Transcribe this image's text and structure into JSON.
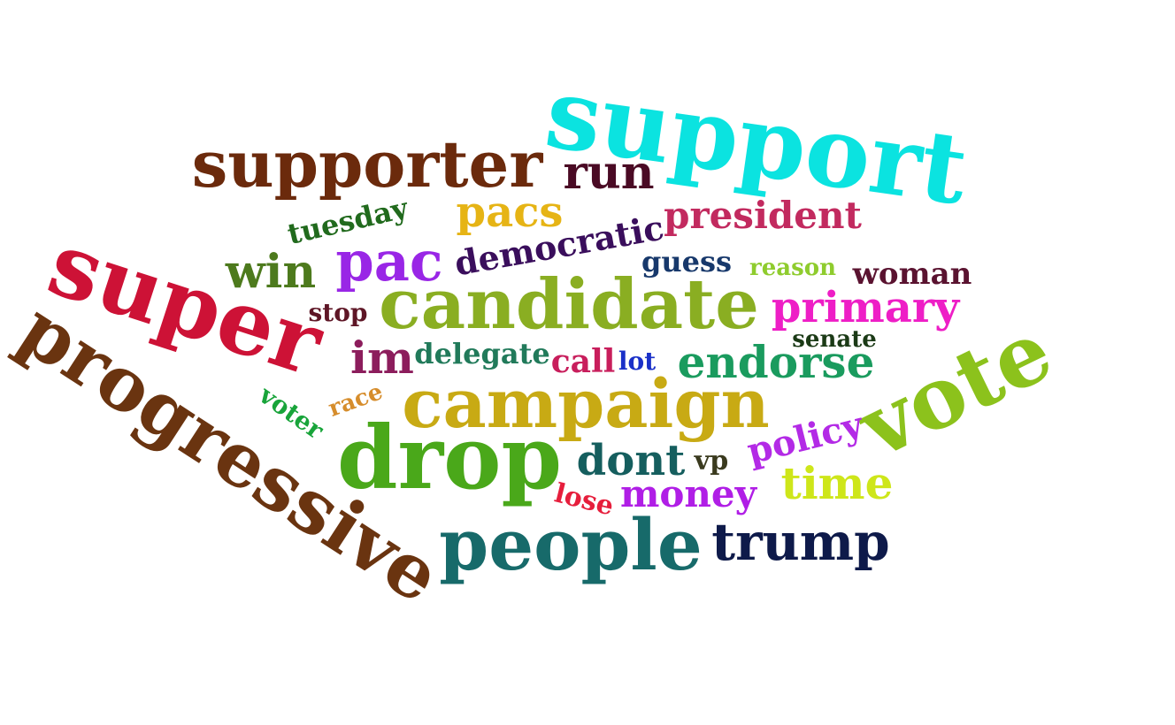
{
  "words": [
    {
      "key": "support",
      "text": "support",
      "color": "#0be3e0"
    },
    {
      "key": "supporter",
      "text": "supporter",
      "color": "#6b2a0c"
    },
    {
      "key": "run",
      "text": "run",
      "color": "#4a0a24"
    },
    {
      "key": "pacs",
      "text": "pacs",
      "color": "#e6b415"
    },
    {
      "key": "tuesday",
      "text": "tuesday",
      "color": "#216a1d"
    },
    {
      "key": "democratic",
      "text": "democratic",
      "color": "#3a0e5c"
    },
    {
      "key": "president",
      "text": "president",
      "color": "#c22a5f"
    },
    {
      "key": "super",
      "text": "super",
      "color": "#cd1236"
    },
    {
      "key": "win",
      "text": "win",
      "color": "#4d7a1d"
    },
    {
      "key": "pac",
      "text": "pac",
      "color": "#9926e6"
    },
    {
      "key": "guess",
      "text": "guess",
      "color": "#17386b"
    },
    {
      "key": "reason",
      "text": "reason",
      "color": "#8fcc2e"
    },
    {
      "key": "woman",
      "text": "woman",
      "color": "#5a1330"
    },
    {
      "key": "candidate",
      "text": "candidate",
      "color": "#8aae22"
    },
    {
      "key": "primary",
      "text": "primary",
      "color": "#ee1ec6"
    },
    {
      "key": "stop",
      "text": "stop",
      "color": "#5e1626"
    },
    {
      "key": "senate",
      "text": "senate",
      "color": "#1b3a16"
    },
    {
      "key": "progressive",
      "text": "progressive",
      "color": "#6a3410"
    },
    {
      "key": "im",
      "text": "im",
      "color": "#8c1d5c"
    },
    {
      "key": "delegate",
      "text": "delegate",
      "color": "#217a5a"
    },
    {
      "key": "call",
      "text": "call",
      "color": "#c81e5c"
    },
    {
      "key": "lot",
      "text": "lot",
      "color": "#1a30c8"
    },
    {
      "key": "endorse",
      "text": "endorse",
      "color": "#1a9b5e"
    },
    {
      "key": "vote",
      "text": "vote",
      "color": "#8cc21c"
    },
    {
      "key": "voter",
      "text": "voter",
      "color": "#18a43a"
    },
    {
      "key": "race",
      "text": "race",
      "color": "#d68d2c"
    },
    {
      "key": "campaign",
      "text": "campaign",
      "color": "#c8aa14"
    },
    {
      "key": "policy",
      "text": "policy",
      "color": "#b32ae6"
    },
    {
      "key": "drop",
      "text": "drop",
      "color": "#4aa81a"
    },
    {
      "key": "dont",
      "text": "dont",
      "color": "#155e5e"
    },
    {
      "key": "vp",
      "text": "vp",
      "color": "#3a3a1e"
    },
    {
      "key": "time",
      "text": "time",
      "color": "#cee61a"
    },
    {
      "key": "money",
      "text": "money",
      "color": "#b01ee6"
    },
    {
      "key": "lose",
      "text": "lose",
      "color": "#e61e3c"
    },
    {
      "key": "people",
      "text": "people",
      "color": "#176a6a"
    },
    {
      "key": "trump",
      "text": "trump",
      "color": "#0e1a4a"
    }
  ]
}
